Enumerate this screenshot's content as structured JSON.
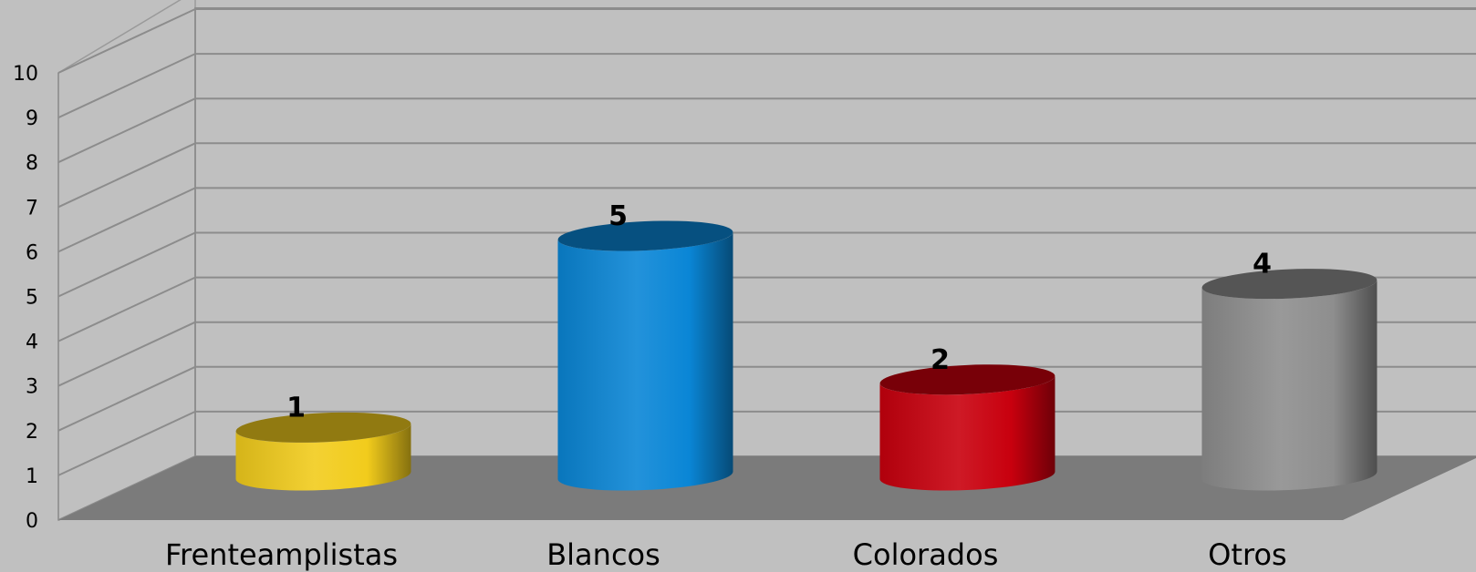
{
  "chart_data": {
    "type": "bar",
    "style": "3d-cylinder",
    "categories": [
      "Frenteamplistas",
      "Blancos",
      "Colorados",
      "Otros"
    ],
    "values": [
      1,
      5,
      2,
      4
    ],
    "data_labels": [
      "1",
      "5",
      "2",
      "4"
    ],
    "colors": [
      "#f2cc1c",
      "#0a86d6",
      "#c8000e",
      "#8e8e8e"
    ],
    "ylim": [
      0,
      10
    ],
    "yticks": [
      "0",
      "1",
      "2",
      "3",
      "4",
      "5",
      "6",
      "7",
      "8",
      "9",
      "10"
    ],
    "grid": true,
    "legend": "none",
    "title": "",
    "xlabel": "",
    "ylabel": "",
    "background_color": "#c0c0c0",
    "floor_color": "#7b7b7b"
  }
}
